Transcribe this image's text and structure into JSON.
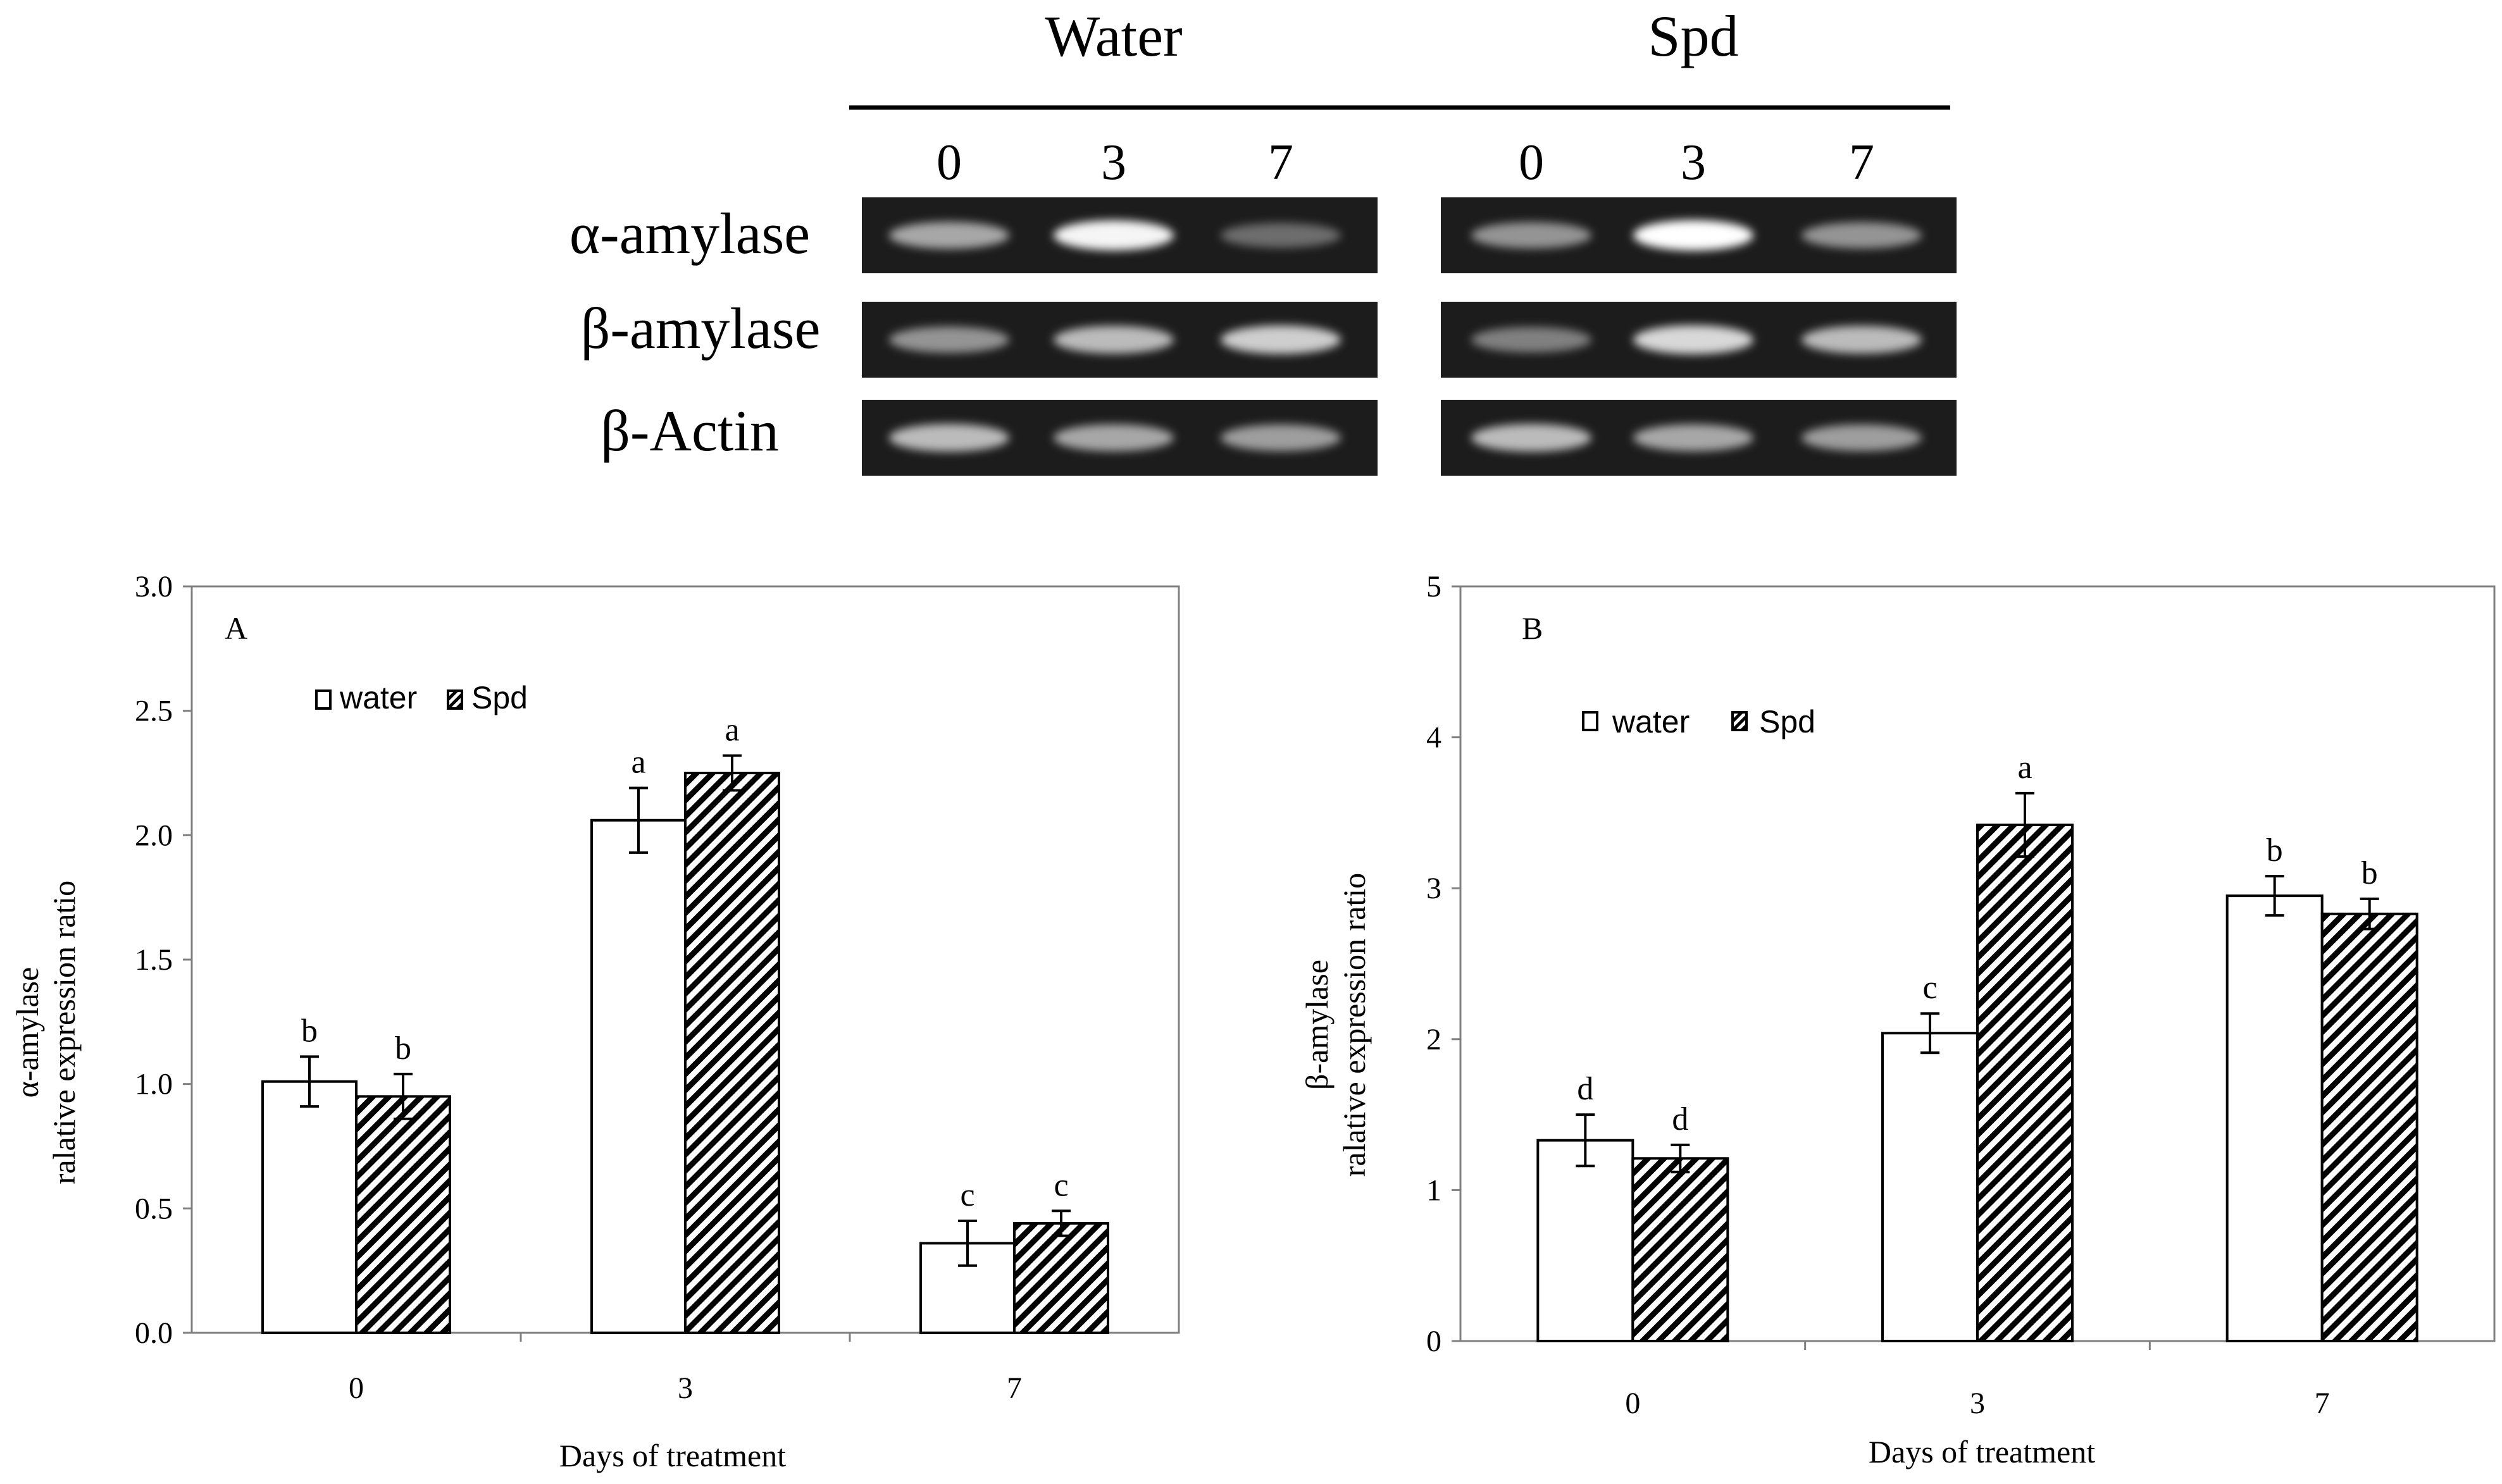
{
  "gel": {
    "groups": [
      {
        "name": "Water",
        "lanes": [
          "0",
          "3",
          "7"
        ]
      },
      {
        "name": "Spd",
        "lanes": [
          "0",
          "3",
          "7"
        ]
      }
    ],
    "rows": [
      {
        "label": "α-amylase",
        "intensities": [
          [
            0.55,
            0.95,
            0.25
          ],
          [
            0.45,
            1.0,
            0.45
          ]
        ]
      },
      {
        "label": "β-amylase",
        "intensities": [
          [
            0.45,
            0.65,
            0.75
          ],
          [
            0.35,
            0.8,
            0.65
          ]
        ]
      },
      {
        "label": "β-Actin",
        "intensities": [
          [
            0.65,
            0.55,
            0.5
          ],
          [
            0.65,
            0.55,
            0.5
          ]
        ]
      }
    ]
  },
  "chart_data": [
    {
      "type": "bar",
      "panel": "A",
      "categories": [
        "0",
        "3",
        "7"
      ],
      "xlabel": "Days of treatment",
      "ylabel": [
        "α-amylase",
        "ralative expression ratio"
      ],
      "ylim": [
        0,
        3.0
      ],
      "yticks": [
        "0.0",
        "0.5",
        "1.0",
        "1.5",
        "2.0",
        "2.5",
        "3.0"
      ],
      "legend": "top-left",
      "series": [
        {
          "name": "water",
          "fill": "open",
          "values": [
            1.01,
            2.06,
            0.36
          ],
          "errors": [
            0.1,
            0.13,
            0.09
          ],
          "letters": [
            "b",
            "a",
            "c"
          ]
        },
        {
          "name": "Spd",
          "fill": "hatched",
          "values": [
            0.95,
            2.25,
            0.44
          ],
          "errors": [
            0.09,
            0.07,
            0.05
          ],
          "letters": [
            "b",
            "a",
            "c"
          ]
        }
      ]
    },
    {
      "type": "bar",
      "panel": "B",
      "categories": [
        "0",
        "3",
        "7"
      ],
      "xlabel": "Days of treatment",
      "ylabel": [
        "β-amylase",
        "ralative expression ratio"
      ],
      "ylim": [
        0,
        5
      ],
      "yticks": [
        "0",
        "1",
        "2",
        "3",
        "4",
        "5"
      ],
      "legend": "top-left",
      "series": [
        {
          "name": "water",
          "fill": "open",
          "values": [
            1.33,
            2.04,
            2.95
          ],
          "errors": [
            0.17,
            0.13,
            0.13
          ],
          "letters": [
            "d",
            "c",
            "b"
          ]
        },
        {
          "name": "Spd",
          "fill": "hatched",
          "values": [
            1.21,
            3.42,
            2.83
          ],
          "errors": [
            0.09,
            0.21,
            0.1
          ],
          "letters": [
            "d",
            "a",
            "b"
          ]
        }
      ]
    }
  ]
}
